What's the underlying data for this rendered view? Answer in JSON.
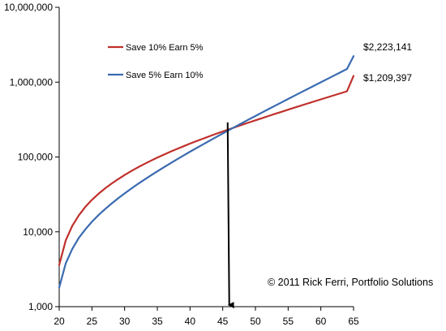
{
  "chart_data": {
    "type": "line",
    "title": "",
    "xlabel": "",
    "ylabel": "",
    "yscale": "log",
    "xlim": [
      20,
      65
    ],
    "ylim": [
      1000,
      10000000
    ],
    "grid": false,
    "legend_position": "top-left",
    "x_ticks": [
      20,
      25,
      30,
      35,
      40,
      45,
      50,
      55,
      60,
      65
    ],
    "x_tick_labels": [
      "20",
      "25",
      "30",
      "35",
      "40",
      "45",
      "50",
      "55",
      "60",
      "65"
    ],
    "y_ticks": [
      1000,
      10000,
      100000,
      1000000,
      10000000
    ],
    "y_tick_labels": [
      "1,000",
      "10,000",
      "100,000",
      "1,000,000",
      "10,000,000"
    ],
    "x": [
      20,
      21,
      22,
      23,
      24,
      25,
      26,
      27,
      28,
      29,
      30,
      31,
      32,
      33,
      34,
      35,
      36,
      37,
      38,
      39,
      40,
      41,
      42,
      43,
      44,
      45,
      46,
      47,
      48,
      49,
      50,
      51,
      52,
      53,
      54,
      55,
      56,
      57,
      58,
      59,
      60,
      61,
      62,
      63,
      64,
      65
    ],
    "series": [
      {
        "name": "Save 10% Earn 5%",
        "color": "#c0302b",
        "values": [
          3600,
          7700,
          12000,
          16600,
          21600,
          26700,
          32200,
          38000,
          44000,
          50500,
          57500,
          64800,
          72500,
          80500,
          89000,
          98000,
          107500,
          117500,
          128000,
          139000,
          151000,
          163000,
          176000,
          189500,
          204000,
          219000,
          235000,
          252000,
          270000,
          289000,
          309000,
          330000,
          353000,
          377000,
          402000,
          429000,
          457000,
          487000,
          519000,
          553000,
          589000,
          627000,
          667000,
          710000,
          756000,
          1209397
        ]
      },
      {
        "name": "Save 5% Earn 10%",
        "color": "#3a6ab0",
        "values": [
          1800,
          3800,
          5900,
          8300,
          10800,
          13600,
          16700,
          20100,
          23800,
          28000,
          32600,
          37700,
          43400,
          49600,
          56600,
          64300,
          72900,
          82400,
          93000,
          104700,
          117600,
          131900,
          147700,
          165200,
          184600,
          206000,
          229800,
          256100,
          285200,
          317400,
          353000,
          392300,
          435800,
          483900,
          537000,
          595800,
          660800,
          732700,
          812200,
          900100,
          997300,
          1104800,
          1223700,
          1355100,
          1500500,
          2223141
        ]
      }
    ],
    "end_labels": [
      "$2,223,141",
      "$1,209,397"
    ],
    "annotation_arrow": {
      "x": 46,
      "y_from": 290000,
      "y_to": 1000
    },
    "copyright": "© 2011 Rick Ferri, Portfolio Solutions",
    "axis_color": "#000000"
  }
}
